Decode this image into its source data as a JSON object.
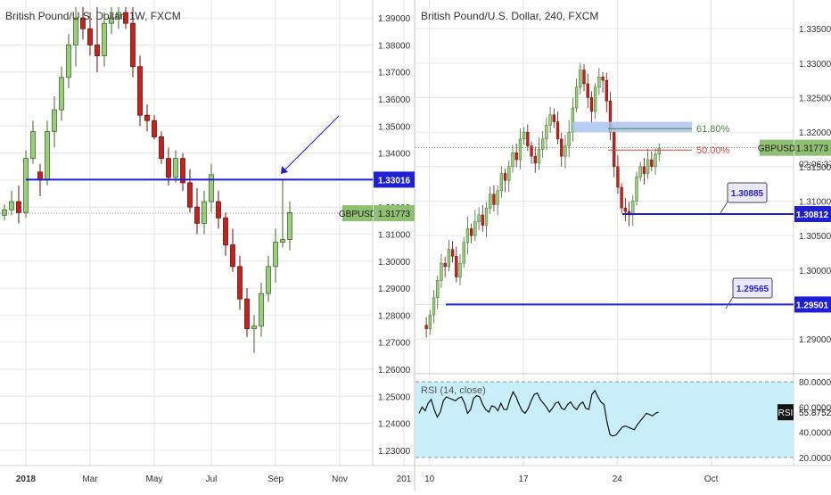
{
  "colors": {
    "up_fill": "#9ccc7e",
    "up_border": "#3d6b2a",
    "down_fill": "#c0241e",
    "down_border": "#6a0f0c",
    "level_line": "#1f1fd6",
    "fib_red": "#e0413b",
    "fib_green": "#4b8a3a",
    "zone_fill": "#aac4ef",
    "price_tag": "#8fbf72",
    "rsi_bg": "#c8eef9",
    "rsi_line": "#111111",
    "axis_text": "#333333",
    "grid": "#e6e6e6"
  },
  "chart_data": [
    {
      "type": "candlestick",
      "title": "British Pound/U.S. Dollar, 1W, FXCM",
      "symbol": "GBPUSD",
      "ylim": [
        1.225,
        1.394
      ],
      "y_ticks": [
        "1.39000",
        "1.38000",
        "1.37000",
        "1.36000",
        "1.35000",
        "1.34000",
        "1.33000",
        "1.32000",
        "1.31000",
        "1.30000",
        "1.29000",
        "1.28000",
        "1.27000",
        "1.26000",
        "1.25000",
        "1.24000",
        "1.23000"
      ],
      "x_tick_labels": [
        "2018",
        "Mar",
        "May",
        "Jul",
        "Sep",
        "Nov",
        "201"
      ],
      "x_tick_index": [
        3,
        12,
        21,
        29,
        38,
        47,
        56
      ],
      "candles": [
        [
          1.317,
          1.321,
          1.315,
          1.319
        ],
        [
          1.319,
          1.326,
          1.317,
          1.322
        ],
        [
          1.322,
          1.328,
          1.314,
          1.318
        ],
        [
          1.318,
          1.341,
          1.316,
          1.338
        ],
        [
          1.338,
          1.352,
          1.336,
          1.348
        ],
        [
          1.333,
          1.336,
          1.324,
          1.33
        ],
        [
          1.33,
          1.352,
          1.328,
          1.348
        ],
        [
          1.348,
          1.361,
          1.342,
          1.356
        ],
        [
          1.356,
          1.372,
          1.352,
          1.368
        ],
        [
          1.368,
          1.384,
          1.364,
          1.38
        ],
        [
          1.38,
          1.394,
          1.372,
          1.39
        ],
        [
          1.39,
          1.394,
          1.382,
          1.386
        ],
        [
          1.386,
          1.392,
          1.376,
          1.38
        ],
        [
          1.38,
          1.394,
          1.37,
          1.376
        ],
        [
          1.376,
          1.392,
          1.372,
          1.388
        ],
        [
          1.388,
          1.394,
          1.384,
          1.39
        ],
        [
          1.39,
          1.394,
          1.386,
          1.392
        ],
        [
          1.392,
          1.394,
          1.386,
          1.388
        ],
        [
          1.388,
          1.394,
          1.368,
          1.372
        ],
        [
          1.372,
          1.376,
          1.35,
          1.354
        ],
        [
          1.354,
          1.358,
          1.348,
          1.352
        ],
        [
          1.352,
          1.354,
          1.345,
          1.346
        ],
        [
          1.346,
          1.348,
          1.336,
          1.338
        ],
        [
          1.338,
          1.342,
          1.328,
          1.331
        ],
        [
          1.331,
          1.341,
          1.329,
          1.338
        ],
        [
          1.338,
          1.34,
          1.326,
          1.329
        ],
        [
          1.329,
          1.334,
          1.318,
          1.32
        ],
        [
          1.32,
          1.327,
          1.31,
          1.314
        ],
        [
          1.314,
          1.326,
          1.31,
          1.322
        ],
        [
          1.322,
          1.336,
          1.318,
          1.332
        ],
        [
          1.322,
          1.326,
          1.312,
          1.316
        ],
        [
          1.316,
          1.318,
          1.302,
          1.306
        ],
        [
          1.306,
          1.312,
          1.296,
          1.298
        ],
        [
          1.298,
          1.302,
          1.282,
          1.286
        ],
        [
          1.286,
          1.29,
          1.272,
          1.275
        ],
        [
          1.275,
          1.28,
          1.266,
          1.276
        ],
        [
          1.276,
          1.292,
          1.272,
          1.288
        ],
        [
          1.288,
          1.302,
          1.285,
          1.298
        ],
        [
          1.298,
          1.312,
          1.292,
          1.307
        ],
        [
          1.307,
          1.33,
          1.305,
          1.308
        ],
        [
          1.308,
          1.322,
          1.304,
          1.318
        ]
      ],
      "levels": [
        {
          "price": 1.33016,
          "label": "1.33016",
          "kind": "line"
        },
        {
          "price": 1.31773,
          "label": "1.31773",
          "tag": "GBPUSD",
          "kind": "price"
        }
      ]
    },
    {
      "type": "candlestick",
      "title": "British Pound/U.S. Dollar, 240, FXCM",
      "symbol": "GBPUSD",
      "ylim": [
        1.2855,
        1.3385
      ],
      "y_ticks": [
        "1.33500",
        "1.33000",
        "1.32500",
        "1.32000",
        "1.31500",
        "1.31000",
        "1.30500",
        "1.30000",
        "1.29500",
        "1.29000"
      ],
      "x_tick_labels": [
        "10",
        "17",
        "24",
        "Oct"
      ],
      "x_tick_index": [
        3,
        30,
        57,
        84
      ],
      "countdown": "02:06:37",
      "fibs": [
        {
          "label": "61.80%",
          "price": 1.3205
        },
        {
          "label": "50.00%",
          "price": 1.3174
        }
      ],
      "levels": [
        {
          "price": 1.30812,
          "label": "1.30812",
          "callout": "1.30885"
        },
        {
          "price": 1.29501,
          "label": "1.29501",
          "callout": "1.29565"
        },
        {
          "price": 1.31773,
          "label": "1.31773",
          "tag": "GBPUSD",
          "kind": "price"
        }
      ],
      "rsi": {
        "label": "RSI (14, close)",
        "tag": "RSI",
        "value": "55.8752",
        "ylim": [
          15,
          85
        ],
        "y_ticks": [
          "80.0000",
          "60.0000",
          "40.0000",
          "20.0000"
        ],
        "band": [
          20,
          80
        ],
        "values": [
          55,
          60,
          57,
          63,
          66,
          58,
          52,
          56,
          65,
          68,
          67,
          66,
          65,
          67,
          68,
          63,
          55,
          58,
          67,
          69,
          68,
          62,
          58,
          56,
          61,
          60,
          57,
          63,
          58,
          58,
          66,
          72,
          68,
          62,
          57,
          55,
          59,
          65,
          70,
          71,
          66,
          63,
          60,
          56,
          59,
          63,
          64,
          59,
          58,
          62,
          64,
          60,
          58,
          62,
          64,
          59,
          58,
          70,
          73,
          68,
          64,
          62,
          48,
          38,
          37,
          38,
          41,
          44,
          45,
          44,
          43,
          42,
          46,
          49,
          52,
          55,
          54,
          53,
          55,
          56
        ]
      }
    }
  ]
}
